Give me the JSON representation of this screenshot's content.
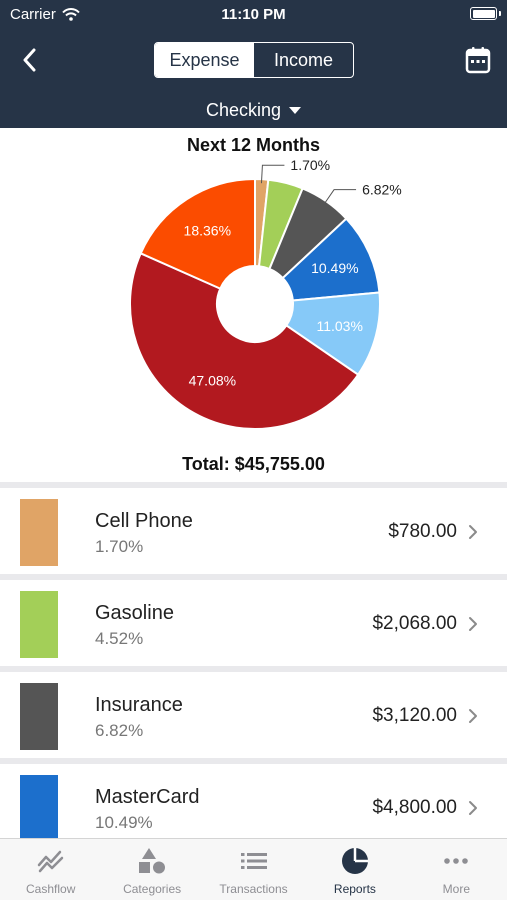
{
  "status_bar": {
    "carrier": "Carrier",
    "time": "11:10 PM"
  },
  "header": {
    "segments": [
      {
        "label": "Expense",
        "active": true
      },
      {
        "label": "Income",
        "active": false
      }
    ],
    "account": "Checking"
  },
  "chart_data": {
    "type": "pie",
    "title": "Next 12 Months",
    "donut": true,
    "slices": [
      {
        "label": "Cell Phone",
        "value": 780.0,
        "percent": 1.7,
        "percent_label": "1.70%",
        "color": "#e0a466"
      },
      {
        "label": "Gasoline",
        "value": 2068.0,
        "percent": 4.52,
        "percent_label": "",
        "color": "#a3cf58"
      },
      {
        "label": "Insurance",
        "value": 3120.0,
        "percent": 6.82,
        "percent_label": "6.82%",
        "color": "#555555"
      },
      {
        "label": "MasterCard",
        "value": 4800.0,
        "percent": 10.49,
        "percent_label": "10.49%",
        "color": "#1c6fcc"
      },
      {
        "label": "",
        "value": null,
        "percent": 11.03,
        "percent_label": "11.03%",
        "color": "#86c9f8"
      },
      {
        "label": "",
        "value": null,
        "percent": 47.08,
        "percent_label": "47.08%",
        "color": "#b2191f"
      },
      {
        "label": "",
        "value": null,
        "percent": 18.36,
        "percent_label": "18.36%",
        "color": "#fb4c00"
      }
    ],
    "total_label": "Total: $45,755.00"
  },
  "categories": [
    {
      "name": "Cell Phone",
      "percent": "1.70%",
      "amount": "$780.00",
      "color": "#e0a466"
    },
    {
      "name": "Gasoline",
      "percent": "4.52%",
      "amount": "$2,068.00",
      "color": "#a3cf58"
    },
    {
      "name": "Insurance",
      "percent": "6.82%",
      "amount": "$3,120.00",
      "color": "#555555"
    },
    {
      "name": "MasterCard",
      "percent": "10.49%",
      "amount": "$4,800.00",
      "color": "#1c6fcc"
    }
  ],
  "tabbar": [
    {
      "label": "Cashflow",
      "icon": "cashflow-icon",
      "active": false
    },
    {
      "label": "Categories",
      "icon": "categories-icon",
      "active": false
    },
    {
      "label": "Transactions",
      "icon": "transactions-icon",
      "active": false
    },
    {
      "label": "Reports",
      "icon": "reports-icon",
      "active": true
    },
    {
      "label": "More",
      "icon": "more-icon",
      "active": false
    }
  ],
  "colors": {
    "header_bg": "#263447",
    "active_tab": "#263447",
    "inactive_tab": "#8e8e93"
  }
}
